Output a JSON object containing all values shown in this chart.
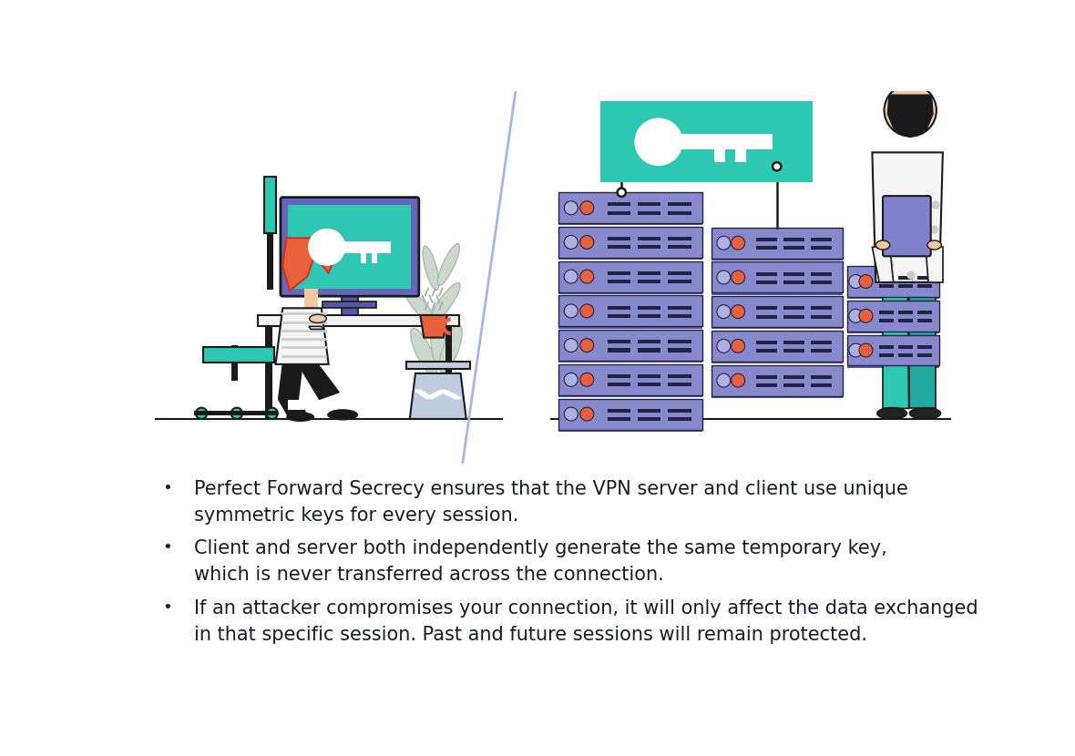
{
  "bg_color": "#ffffff",
  "divider_color": "#aab4e8",
  "text_color": "#1a1a2e",
  "teal_color": "#2dc7b2",
  "blue_server_face": "#8888cc",
  "blue_server_dark": "#5555aa",
  "orange_dot": "#e8603c",
  "chair_color": "#2dc7b2",
  "hair_color": "#e8603c",
  "skin_color": "#f5c9a0",
  "black_color": "#1a1a1a",
  "white_color": "#ffffff",
  "bullet_points": [
    "Perfect Forward Secrecy ensures that the VPN server and client use unique\nsymmetric keys for every session.",
    "Client and server both independently generate the same temporary key,\nwhich is never transferred across the connection.",
    "If an attacker compromises your connection, it will only affect the data exchanged\nin that specific session. Past and future sessions will remain protected."
  ],
  "font_size_body": 15
}
